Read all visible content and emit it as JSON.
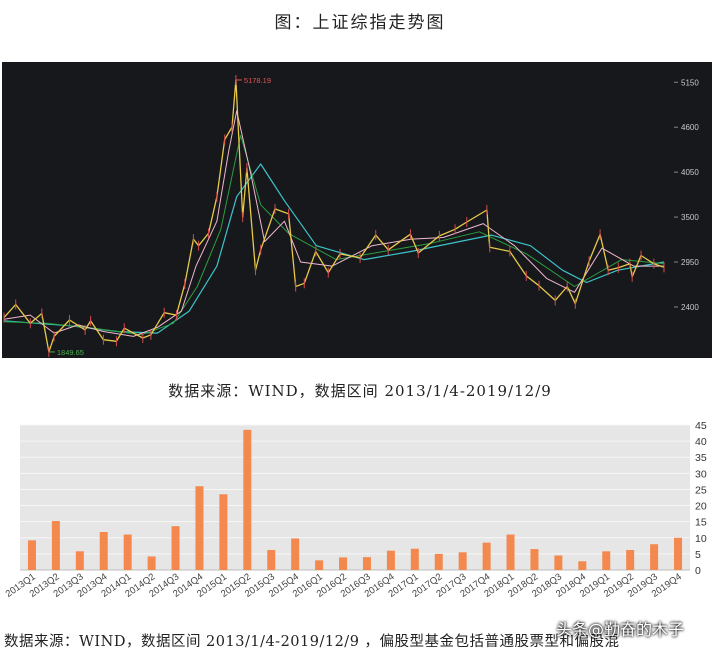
{
  "page": {
    "title": "图：上证综指走势图",
    "source_top": "数据来源：WIND，数据区间 2013/1/4-2019/12/9",
    "source_bottom": "数据来源：WIND，数据区间 2013/1/4-2019/12/9 ，偏股型基金包括普通股票型和偏股混",
    "watermark": "头条@勤奋的木子"
  },
  "chart_data": [
    {
      "type": "line",
      "title": "上证综指走势图",
      "x_range": [
        "2013-01-04",
        "2019-12-09"
      ],
      "ylim": [
        1800,
        5300
      ],
      "y_ticks": [
        2400,
        2950,
        3500,
        4050,
        4600,
        5150
      ],
      "y_axis_position": "right",
      "grid": false,
      "background": "#17181c",
      "annotations": [
        {
          "label": "5178.19",
          "date": "2015-06-12",
          "value": 5178.19
        },
        {
          "label": "1849.65",
          "date": "2013-06-25",
          "value": 1849.65
        }
      ],
      "series": [
        {
          "role": "index",
          "color": "#e8c94a",
          "points": [
            [
              "2013-01-04",
              2270
            ],
            [
              "2013-02-18",
              2430
            ],
            [
              "2013-04-15",
              2200
            ],
            [
              "2013-05-29",
              2320
            ],
            [
              "2013-06-25",
              1849.65
            ],
            [
              "2013-07-15",
              2040
            ],
            [
              "2013-09-12",
              2240
            ],
            [
              "2013-11-11",
              2120
            ],
            [
              "2013-12-02",
              2230
            ],
            [
              "2014-01-20",
              2000
            ],
            [
              "2014-03-11",
              1980
            ],
            [
              "2014-04-10",
              2140
            ],
            [
              "2014-06-20",
              2020
            ],
            [
              "2014-07-21",
              2060
            ],
            [
              "2014-09-10",
              2330
            ],
            [
              "2014-10-27",
              2300
            ],
            [
              "2014-11-28",
              2680
            ],
            [
              "2014-12-31",
              3230
            ],
            [
              "2015-01-20",
              3150
            ],
            [
              "2015-02-27",
              3300
            ],
            [
              "2015-03-31",
              3750
            ],
            [
              "2015-04-30",
              4450
            ],
            [
              "2015-05-28",
              4600
            ],
            [
              "2015-06-12",
              5178.19
            ],
            [
              "2015-07-08",
              3500
            ],
            [
              "2015-07-24",
              4100
            ],
            [
              "2015-08-26",
              2850
            ],
            [
              "2015-09-15",
              3100
            ],
            [
              "2015-11-09",
              3600
            ],
            [
              "2015-12-31",
              3540
            ],
            [
              "2016-01-27",
              2650
            ],
            [
              "2016-02-29",
              2690
            ],
            [
              "2016-04-13",
              3080
            ],
            [
              "2016-05-31",
              2820
            ],
            [
              "2016-07-15",
              3050
            ],
            [
              "2016-09-30",
              3000
            ],
            [
              "2016-11-29",
              3280
            ],
            [
              "2017-01-16",
              3100
            ],
            [
              "2017-04-11",
              3290
            ],
            [
              "2017-05-11",
              3060
            ],
            [
              "2017-07-31",
              3270
            ],
            [
              "2017-09-29",
              3350
            ],
            [
              "2017-11-13",
              3440
            ],
            [
              "2018-01-29",
              3587
            ],
            [
              "2018-02-09",
              3130
            ],
            [
              "2018-04-27",
              3080
            ],
            [
              "2018-06-29",
              2780
            ],
            [
              "2018-08-17",
              2660
            ],
            [
              "2018-10-18",
              2480
            ],
            [
              "2018-12-03",
              2650
            ],
            [
              "2019-01-03",
              2440
            ],
            [
              "2019-02-25",
              2960
            ],
            [
              "2019-04-08",
              3288
            ],
            [
              "2019-05-09",
              2850
            ],
            [
              "2019-06-17",
              2880
            ],
            [
              "2019-07-31",
              2930
            ],
            [
              "2019-08-09",
              2770
            ],
            [
              "2019-09-12",
              3030
            ],
            [
              "2019-10-31",
              2930
            ],
            [
              "2019-12-09",
              2885
            ]
          ]
        },
        {
          "role": "moving-average-short",
          "color": "#f2b8cf",
          "points": [
            [
              "2013-01-04",
              2250
            ],
            [
              "2013-04-15",
              2300
            ],
            [
              "2013-07-15",
              2080
            ],
            [
              "2013-10-15",
              2180
            ],
            [
              "2014-01-20",
              2100
            ],
            [
              "2014-05-15",
              2040
            ],
            [
              "2014-08-15",
              2150
            ],
            [
              "2014-11-15",
              2350
            ],
            [
              "2015-01-10",
              2900
            ],
            [
              "2015-03-31",
              3450
            ],
            [
              "2015-05-15",
              4300
            ],
            [
              "2015-06-15",
              4800
            ],
            [
              "2015-08-10",
              4000
            ],
            [
              "2015-09-30",
              3200
            ],
            [
              "2015-12-15",
              3450
            ],
            [
              "2016-02-15",
              2950
            ],
            [
              "2016-06-15",
              2900
            ],
            [
              "2016-11-15",
              3150
            ],
            [
              "2017-04-15",
              3230
            ],
            [
              "2017-08-15",
              3250
            ],
            [
              "2018-01-15",
              3420
            ],
            [
              "2018-05-15",
              3150
            ],
            [
              "2018-09-15",
              2750
            ],
            [
              "2018-12-31",
              2580
            ],
            [
              "2019-04-15",
              3120
            ],
            [
              "2019-08-15",
              2900
            ],
            [
              "2019-12-09",
              2900
            ]
          ]
        },
        {
          "role": "moving-average-mid",
          "color": "#2a9f3f",
          "points": [
            [
              "2013-01-04",
              2220
            ],
            [
              "2013-06-15",
              2200
            ],
            [
              "2013-12-15",
              2140
            ],
            [
              "2014-06-15",
              2060
            ],
            [
              "2014-10-15",
              2200
            ],
            [
              "2015-01-15",
              2650
            ],
            [
              "2015-04-15",
              3350
            ],
            [
              "2015-06-30",
              4500
            ],
            [
              "2015-09-15",
              3650
            ],
            [
              "2015-12-31",
              3300
            ],
            [
              "2016-06-30",
              2980
            ],
            [
              "2016-12-31",
              3080
            ],
            [
              "2017-06-30",
              3180
            ],
            [
              "2017-12-31",
              3320
            ],
            [
              "2018-06-30",
              3050
            ],
            [
              "2018-12-31",
              2650
            ],
            [
              "2019-06-30",
              2980
            ],
            [
              "2019-12-09",
              2930
            ]
          ]
        },
        {
          "role": "moving-average-long",
          "color": "#3cc4c8",
          "points": [
            [
              "2013-01-04",
              2230
            ],
            [
              "2013-09-15",
              2170
            ],
            [
              "2014-03-15",
              2100
            ],
            [
              "2014-08-15",
              2080
            ],
            [
              "2014-12-15",
              2350
            ],
            [
              "2015-03-31",
              2900
            ],
            [
              "2015-06-15",
              3750
            ],
            [
              "2015-09-15",
              4150
            ],
            [
              "2015-12-15",
              3700
            ],
            [
              "2016-04-15",
              3150
            ],
            [
              "2016-10-15",
              2980
            ],
            [
              "2017-04-15",
              3080
            ],
            [
              "2017-10-15",
              3200
            ],
            [
              "2018-02-15",
              3280
            ],
            [
              "2018-07-15",
              3150
            ],
            [
              "2018-11-15",
              2850
            ],
            [
              "2019-02-15",
              2700
            ],
            [
              "2019-06-15",
              2850
            ],
            [
              "2019-12-09",
              2950
            ]
          ]
        }
      ]
    },
    {
      "type": "bar",
      "categories": [
        "2013Q1",
        "2013Q2",
        "2013Q3",
        "2013Q4",
        "2014Q1",
        "2014Q2",
        "2014Q3",
        "2014Q4",
        "2015Q1",
        "2015Q2",
        "2015Q3",
        "2015Q4",
        "2016Q1",
        "2016Q2",
        "2016Q3",
        "2016Q4",
        "2017Q1",
        "2017Q2",
        "2017Q3",
        "2017Q4",
        "2018Q1",
        "2018Q2",
        "2018Q3",
        "2018Q4",
        "2019Q1",
        "2019Q2",
        "2019Q3",
        "2019Q4"
      ],
      "values": [
        9.2,
        15.2,
        5.8,
        11.8,
        11,
        4.2,
        13.6,
        26,
        23.5,
        43.5,
        6.2,
        9.8,
        3,
        3.9,
        4,
        6,
        6.6,
        5,
        5.5,
        8.5,
        11,
        6.5,
        4.5,
        2.7,
        5.8,
        6.2,
        8,
        10
      ],
      "ylim": [
        0,
        45
      ],
      "y_ticks": [
        0,
        5,
        10,
        15,
        20,
        25,
        30,
        35,
        40,
        45
      ],
      "y_axis_position": "right",
      "grid": true,
      "bar_color": "#f3894f",
      "background": "#e6e6e6"
    }
  ]
}
